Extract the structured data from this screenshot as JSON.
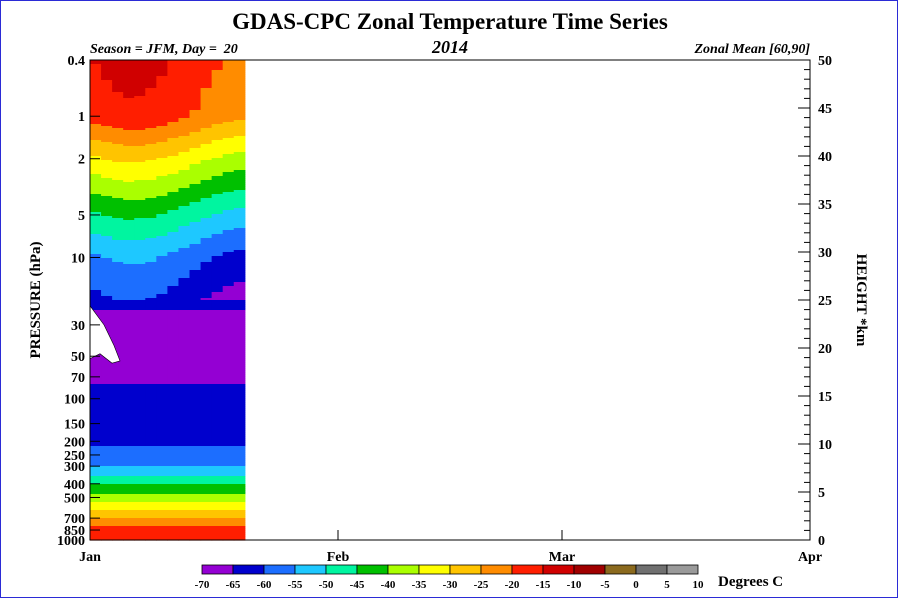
{
  "chart_data": {
    "type": "heatmap",
    "title": "GDAS-CPC Zonal Temperature Time Series",
    "subtitle_left": "Season = JFM, Day =  20",
    "subtitle_center": "2014",
    "subtitle_right": "Zonal Mean [60,90]",
    "ylabel_left": "PRESSURE (hPa)",
    "ylabel_right": "HEIGHT *km",
    "x_ticks": [
      "Jan",
      "Feb",
      "Mar",
      "Apr"
    ],
    "x_tick_days": [
      1,
      32,
      60,
      91
    ],
    "x_range_days": [
      1,
      91
    ],
    "data_day_range": [
      1,
      20
    ],
    "pressure_ticks": [
      "0.4",
      "1",
      "2",
      "5",
      "10",
      "30",
      "50",
      "70",
      "100",
      "150",
      "200",
      "250",
      "300",
      "400",
      "500",
      "700",
      "850",
      "1000"
    ],
    "pressure_values": [
      0.4,
      1,
      2,
      5,
      10,
      30,
      50,
      70,
      100,
      150,
      200,
      250,
      300,
      400,
      500,
      700,
      850,
      1000
    ],
    "height_ticks_km": [
      0,
      5,
      10,
      15,
      20,
      25,
      30,
      35,
      40,
      45,
      50
    ],
    "height_range_km": [
      0,
      50
    ],
    "colorbar": {
      "unit_label": "Degrees C",
      "levels": [
        -70,
        -65,
        -60,
        -55,
        -50,
        -45,
        -40,
        -35,
        -30,
        -25,
        -20,
        -15,
        -10,
        -5,
        0,
        5,
        10
      ],
      "level_labels": [
        "-70",
        "-65",
        "-60",
        "-55",
        "-50",
        "-45",
        "-40",
        "-35",
        "-30",
        "-25",
        "-20",
        "-15",
        "-10",
        "-5",
        "0",
        "5",
        "10"
      ],
      "colors": [
        "#9400d3",
        "#0000cd",
        "#1c6eff",
        "#1ec8ff",
        "#00f5a0",
        "#00c000",
        "#aaff00",
        "#ffff00",
        "#ffc400",
        "#ff8c00",
        "#ff1e00",
        "#d00000",
        "#a00000",
        "#8b6a1e",
        "#707070",
        "#9a9a9a"
      ]
    },
    "approx_zonal_mean_profile": [
      {
        "pressure_hPa": 0.4,
        "temp_C": -17
      },
      {
        "pressure_hPa": 1,
        "temp_C": -20
      },
      {
        "pressure_hPa": 2,
        "temp_C": -33
      },
      {
        "pressure_hPa": 5,
        "temp_C": -48
      },
      {
        "pressure_hPa": 10,
        "temp_C": -58
      },
      {
        "pressure_hPa": 30,
        "temp_C": -67
      },
      {
        "pressure_hPa": 50,
        "temp_C": -67
      },
      {
        "pressure_hPa": 70,
        "temp_C": -66
      },
      {
        "pressure_hPa": 100,
        "temp_C": -63
      },
      {
        "pressure_hPa": 200,
        "temp_C": -61
      },
      {
        "pressure_hPa": 300,
        "temp_C": -55
      },
      {
        "pressure_hPa": 500,
        "temp_C": -38
      },
      {
        "pressure_hPa": 700,
        "temp_C": -25
      },
      {
        "pressure_hPa": 850,
        "temp_C": -17
      },
      {
        "pressure_hPa": 1000,
        "temp_C": -15
      }
    ]
  }
}
